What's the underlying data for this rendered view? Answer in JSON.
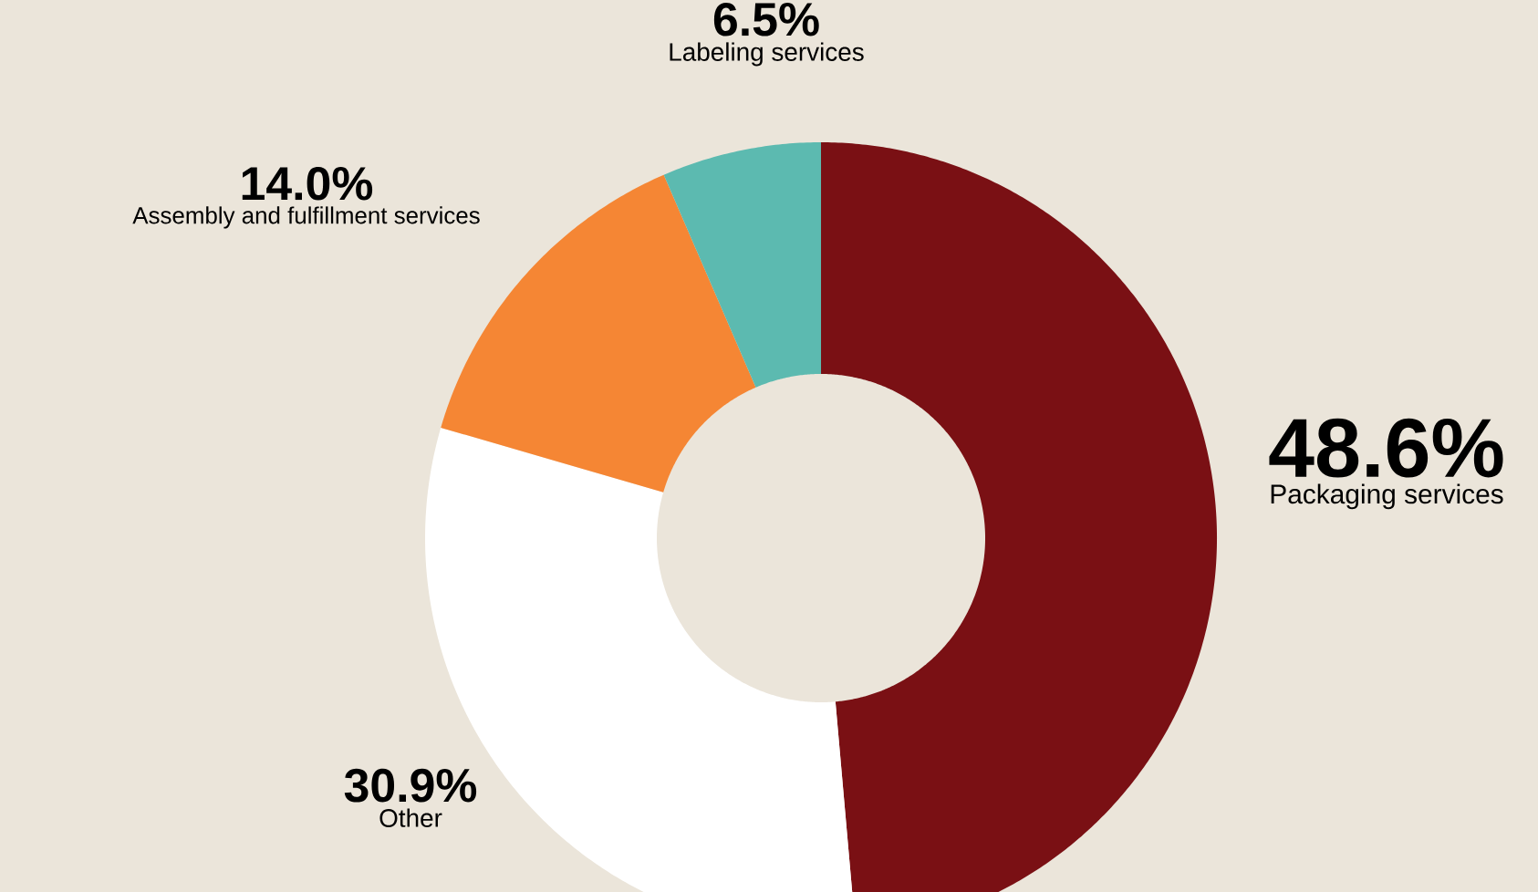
{
  "chart_data": {
    "type": "donut",
    "categories": [
      "Packaging services",
      "Other",
      "Assembly and fulfillment services",
      "Labeling services"
    ],
    "values": [
      48.6,
      30.9,
      14.0,
      6.5
    ],
    "colors": [
      "#7a1014",
      "#ffffff",
      "#f58634",
      "#5cbab0"
    ],
    "value_labels": [
      "48.6%",
      "30.9%",
      "14.0%",
      "6.5%"
    ]
  }
}
